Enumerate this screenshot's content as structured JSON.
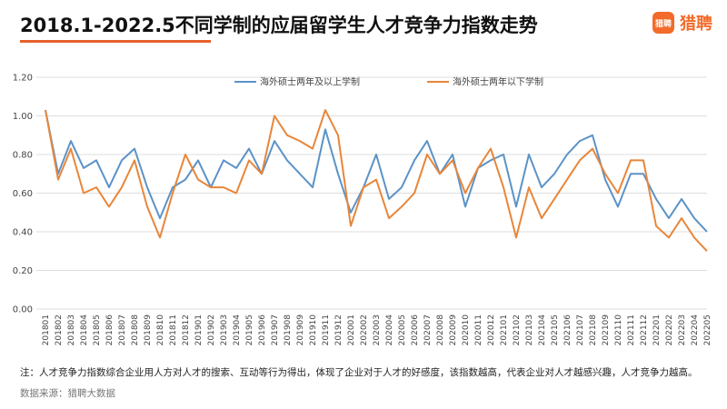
{
  "title": "2018.1-2022.5不同学制的应届留学生人才竞争力指数走势",
  "logo": {
    "badge": "猎聘",
    "text": "猎聘"
  },
  "note": "注：人才竞争力指数综合企业用人方对人才的搜索、互动等行为得出，体现了企业对于人才的好感度，该指数越高，代表企业对人才越感兴趣，人才竞争力越高。",
  "source": "数据来源：猎聘大数据",
  "colors": {
    "series1": "#5b93c7",
    "series2": "#e8863a",
    "grid": "#dddddd",
    "title_accent": "#e8602c"
  },
  "chart_data": {
    "type": "line",
    "ylim": [
      0,
      1.2
    ],
    "yticks": [
      "0.00",
      "0.20",
      "0.40",
      "0.60",
      "0.80",
      "1.00",
      "1.20"
    ],
    "grid": "horizontal",
    "legend": "top-center",
    "categories": [
      "201801",
      "201802",
      "201803",
      "201804",
      "201805",
      "201806",
      "201807",
      "201808",
      "201809",
      "201810",
      "201811",
      "201812",
      "201901",
      "201902",
      "201903",
      "201904",
      "201905",
      "201906",
      "201907",
      "201908",
      "201909",
      "201910",
      "201911",
      "201912",
      "202001",
      "202002",
      "202003",
      "202004",
      "202005",
      "202006",
      "202007",
      "202008",
      "202009",
      "202010",
      "202011",
      "202012",
      "202101",
      "202102",
      "202103",
      "202104",
      "202105",
      "202106",
      "202107",
      "202108",
      "202109",
      "202110",
      "202111",
      "202112",
      "202201",
      "202202",
      "202203",
      "202204",
      "202205"
    ],
    "series": [
      {
        "name": "海外硕士两年及以上学制",
        "values": [
          1.03,
          0.7,
          0.87,
          0.73,
          0.77,
          0.63,
          0.77,
          0.83,
          0.63,
          0.47,
          0.63,
          0.67,
          0.77,
          0.63,
          0.77,
          0.73,
          0.83,
          0.7,
          0.87,
          0.77,
          0.7,
          0.63,
          0.93,
          0.7,
          0.5,
          0.63,
          0.8,
          0.57,
          0.63,
          0.77,
          0.87,
          0.7,
          0.8,
          0.53,
          0.73,
          0.77,
          0.8,
          0.53,
          0.8,
          0.63,
          0.7,
          0.8,
          0.87,
          0.9,
          0.67,
          0.53,
          0.7,
          0.7,
          0.57,
          0.47,
          0.57,
          0.47,
          0.4
        ]
      },
      {
        "name": "海外硕士两年以下学制",
        "values": [
          1.03,
          0.67,
          0.83,
          0.6,
          0.63,
          0.53,
          0.63,
          0.77,
          0.53,
          0.37,
          0.6,
          0.8,
          0.67,
          0.63,
          0.63,
          0.6,
          0.77,
          0.7,
          1.0,
          0.9,
          0.87,
          0.83,
          1.03,
          0.9,
          0.43,
          0.63,
          0.67,
          0.47,
          0.53,
          0.6,
          0.8,
          0.7,
          0.77,
          0.6,
          0.73,
          0.83,
          0.63,
          0.37,
          0.63,
          0.47,
          0.57,
          0.67,
          0.77,
          0.83,
          0.7,
          0.6,
          0.77,
          0.77,
          0.43,
          0.37,
          0.47,
          0.37,
          0.3
        ]
      }
    ]
  }
}
